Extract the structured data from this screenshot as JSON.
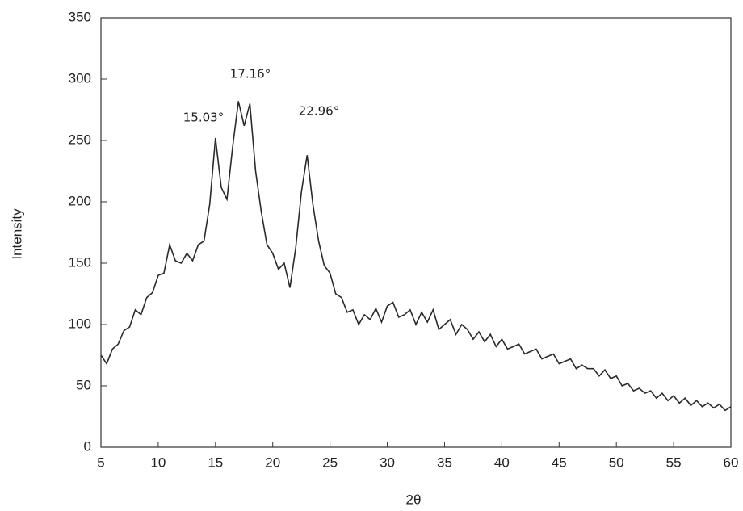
{
  "chart_data": {
    "type": "line",
    "x_label": "2θ",
    "y_label": "Intensity",
    "annotations": [
      "15.03°",
      "17.16°",
      "22.96°"
    ],
    "x": [
      5,
      5.5,
      6,
      6.5,
      7,
      7.5,
      8,
      8.5,
      9,
      9.5,
      10,
      10.5,
      11,
      11.5,
      12,
      12.5,
      13,
      13.5,
      14,
      14.5,
      15,
      15.5,
      16,
      16.5,
      17,
      17.5,
      18,
      18.5,
      19,
      19.5,
      20,
      20.5,
      21,
      21.5,
      22,
      22.5,
      23,
      23.5,
      24,
      24.5,
      25,
      25.5,
      26,
      26.5,
      27,
      27.5,
      28,
      28.5,
      29,
      29.5,
      30,
      30.5,
      31,
      31.5,
      32,
      32.5,
      33,
      33.5,
      34,
      34.5,
      35,
      35.5,
      36,
      36.5,
      37,
      37.5,
      38,
      38.5,
      39,
      39.5,
      40,
      40.5,
      41,
      41.5,
      42,
      42.5,
      43,
      43.5,
      44,
      44.5,
      45,
      45.5,
      46,
      46.5,
      47,
      47.5,
      48,
      48.5,
      49,
      49.5,
      50,
      50.5,
      51,
      51.5,
      52,
      52.5,
      53,
      53.5,
      54,
      54.5,
      55,
      55.5,
      56,
      56.5,
      57,
      57.5,
      58,
      58.5,
      59,
      59.5,
      60
    ],
    "series": [
      {
        "color": "#2a2a2a",
        "values": [
          75,
          68,
          80,
          84,
          95,
          98,
          112,
          108,
          122,
          126,
          140,
          142,
          165,
          152,
          150,
          158,
          152,
          165,
          168,
          198,
          252,
          212,
          202,
          245,
          282,
          262,
          280,
          225,
          192,
          165,
          158,
          145,
          150,
          130,
          162,
          208,
          238,
          198,
          168,
          148,
          142,
          125,
          122,
          110,
          112,
          100,
          108,
          104,
          113,
          102,
          115,
          118,
          106,
          108,
          112,
          100,
          110,
          102,
          112,
          96,
          100,
          104,
          92,
          100,
          96,
          88,
          94,
          86,
          92,
          82,
          88,
          80,
          82,
          84,
          76,
          78,
          80,
          72,
          74,
          76,
          68,
          70,
          72,
          64,
          67,
          64,
          64,
          58,
          63,
          56,
          58,
          50,
          52,
          46,
          48,
          44,
          46,
          40,
          44,
          38,
          42,
          36,
          40,
          34,
          38,
          33,
          36,
          32,
          35,
          30,
          33
        ]
      }
    ],
    "xlim": [
      5,
      60
    ],
    "ylim": [
      0,
      350
    ],
    "xticks": [
      5,
      10,
      15,
      20,
      25,
      30,
      35,
      40,
      45,
      50,
      55,
      60
    ],
    "yticks": [
      0,
      50,
      100,
      150,
      200,
      250,
      300,
      350
    ]
  }
}
